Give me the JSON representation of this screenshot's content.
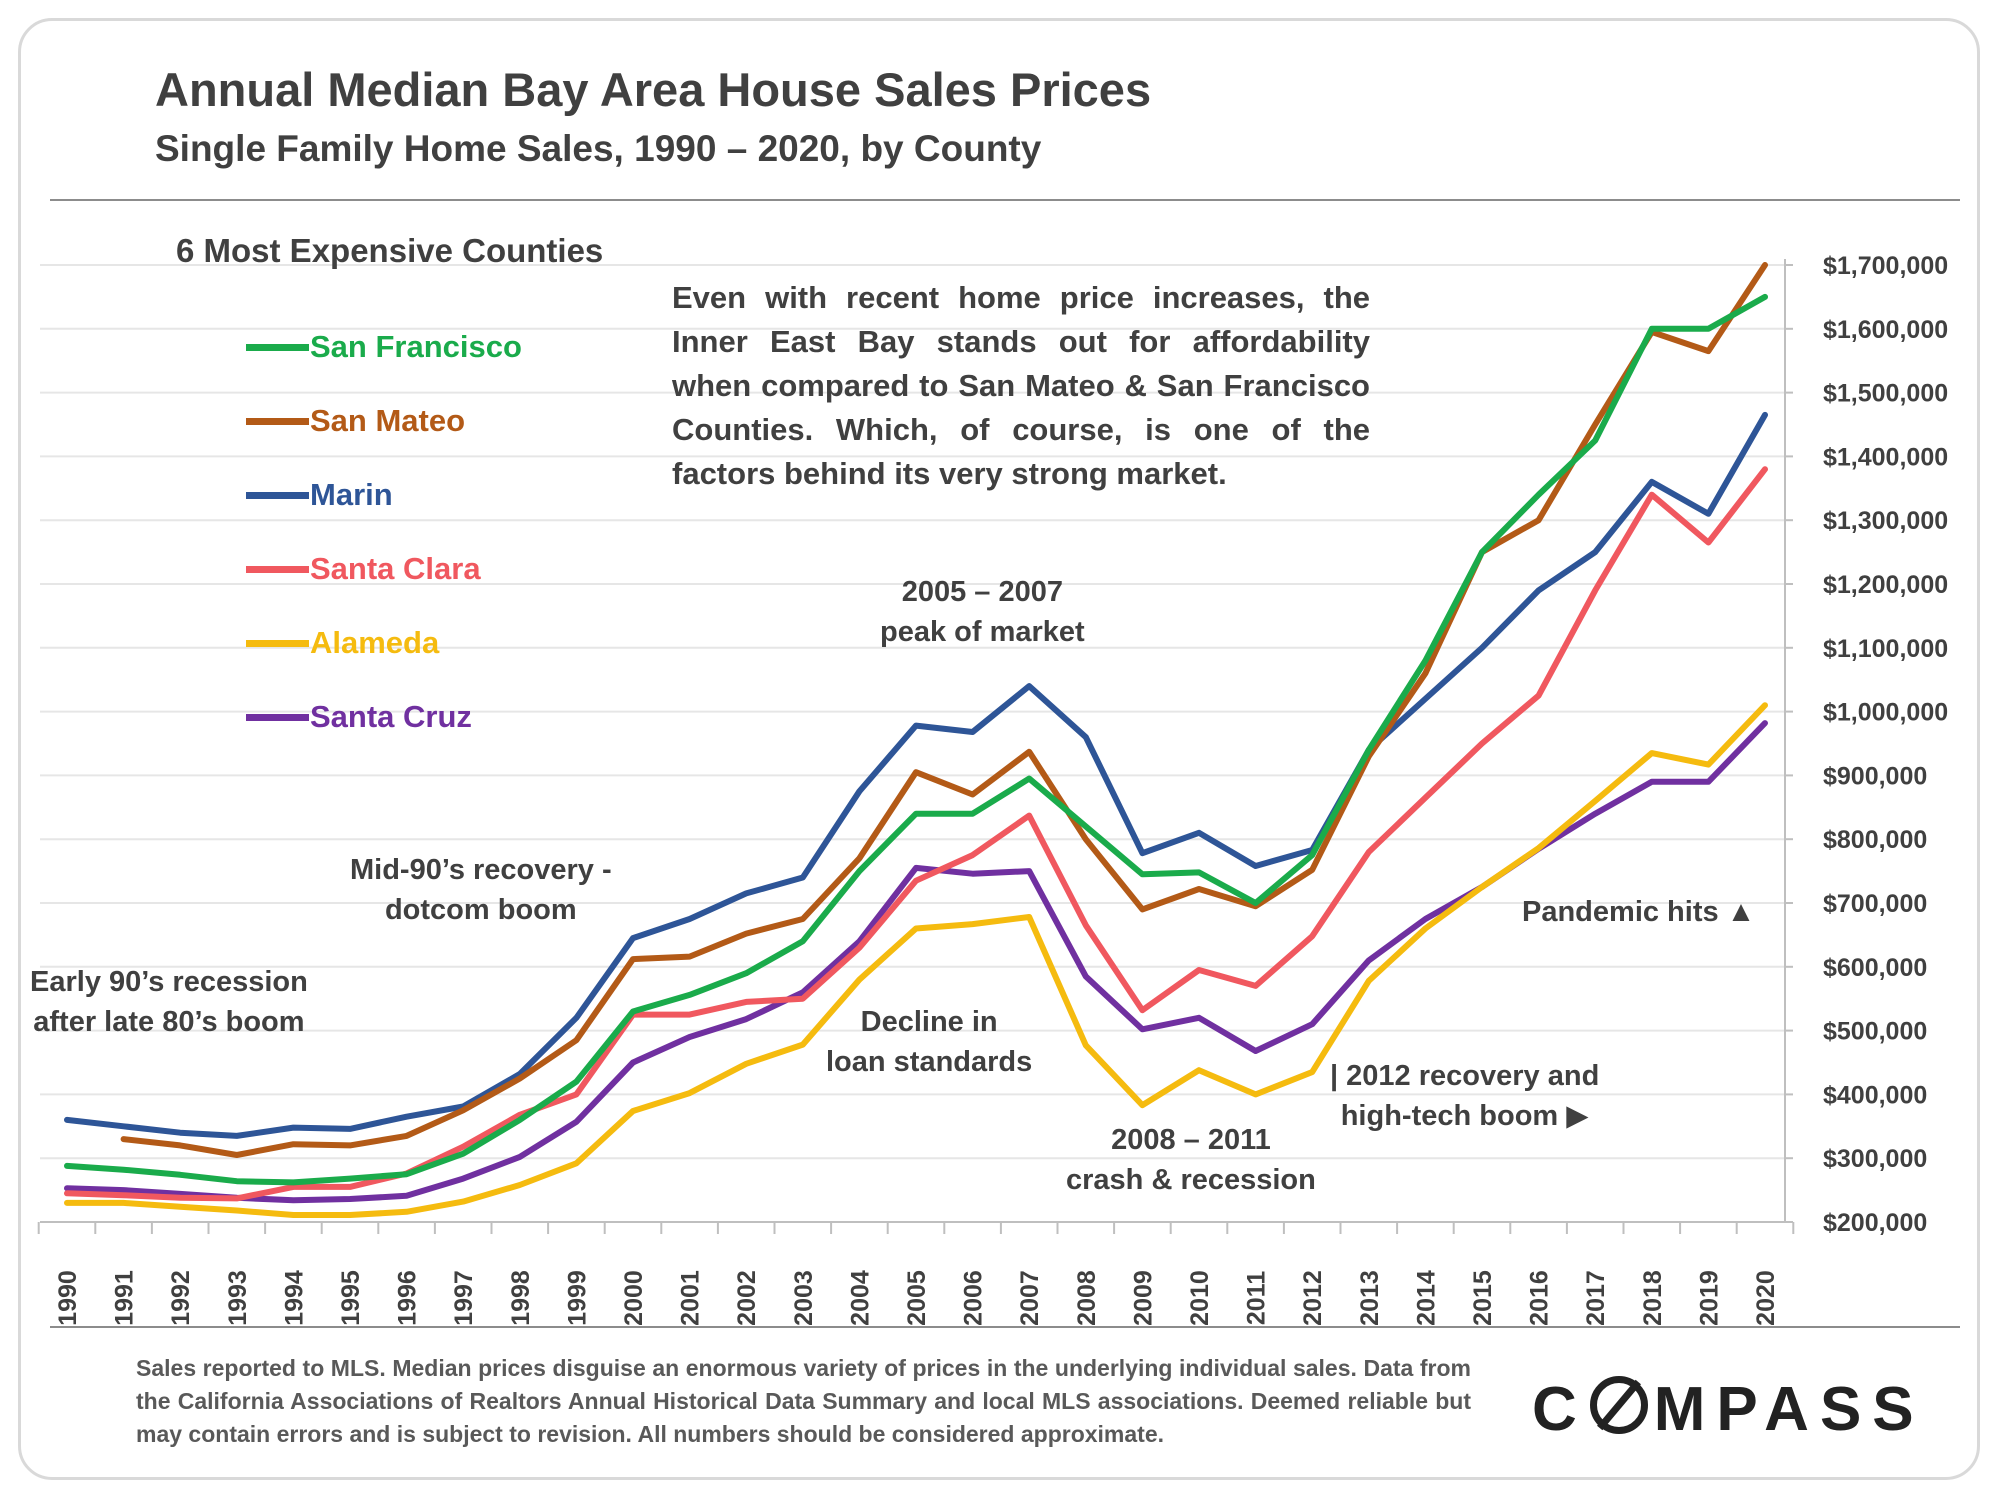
{
  "header": {
    "title": "Annual Median Bay Area House Sales Prices",
    "subtitle": "Single Family Home Sales, 1990 – 2020, by County"
  },
  "legend": {
    "title": "6 Most Expensive Counties"
  },
  "callout": "Even with recent home price increases, the Inner East Bay stands out for affordability when compared to San Mateo & San Francisco Counties. Which, of course, is one of the factors behind its very strong market.",
  "annotations": {
    "early90s": [
      "Early 90’s recession",
      "after late 80’s boom"
    ],
    "mid90s": [
      "Mid-90’s recovery -",
      "dotcom boom"
    ],
    "peak": [
      "2005 – 2007",
      "peak of market"
    ],
    "decline": [
      "Decline in",
      "loan standards"
    ],
    "crash": [
      "2008 – 2011",
      "crash & recession"
    ],
    "recovery2012": [
      "| 2012 recovery and",
      "high-tech boom ▶"
    ],
    "pandemic": "Pandemic hits ▲"
  },
  "footer": "Sales reported to MLS. Median prices disguise an enormous variety of prices in the underlying individual sales. Data from the California Associations of Realtors Annual Historical Data Summary and local MLS associations. Deemed reliable but may contain errors and is subject to revision. All numbers should be considered approximate.",
  "logo": {
    "pre": "C",
    "post": "MPASS",
    "icon": "compass-o-icon"
  },
  "chart_data": {
    "type": "line",
    "title": "Annual Median Bay Area House Sales Prices",
    "subtitle": "Single Family Home Sales, 1990 – 2020, by County",
    "xlabel": "",
    "ylabel": "",
    "x": [
      1990,
      1991,
      1992,
      1993,
      1994,
      1995,
      1996,
      1997,
      1998,
      1999,
      2000,
      2001,
      2002,
      2003,
      2004,
      2005,
      2006,
      2007,
      2008,
      2009,
      2010,
      2011,
      2012,
      2013,
      2014,
      2015,
      2016,
      2017,
      2018,
      2019,
      2020
    ],
    "ylim": [
      200000,
      1700000
    ],
    "yticks": [
      200000,
      300000,
      400000,
      500000,
      600000,
      700000,
      800000,
      900000,
      1000000,
      1100000,
      1200000,
      1300000,
      1400000,
      1500000,
      1600000,
      1700000
    ],
    "ytick_labels": [
      "$200,000",
      "$300,000",
      "$400,000",
      "$500,000",
      "$600,000",
      "$700,000",
      "$800,000",
      "$900,000",
      "$1,000,000",
      "$1,100,000",
      "$1,200,000",
      "$1,300,000",
      "$1,400,000",
      "$1,500,000",
      "$1,600,000",
      "$1,700,000"
    ],
    "y_axis_position": "right",
    "grid": true,
    "legend_position": "top-left",
    "series": [
      {
        "name": "San Francisco",
        "color": "#1aab4b",
        "values": [
          288000,
          282000,
          274000,
          264000,
          262000,
          268000,
          275000,
          307000,
          360000,
          420000,
          530000,
          556000,
          590000,
          640000,
          750000,
          840000,
          840000,
          895000,
          820000,
          745000,
          748000,
          700000,
          775000,
          940000,
          1080000,
          1250000,
          1340000,
          1425000,
          1600000,
          1600000,
          1650000
        ]
      },
      {
        "name": "San Mateo",
        "color": "#b35a17",
        "values": [
          null,
          330000,
          320000,
          305000,
          322000,
          320000,
          335000,
          375000,
          425000,
          485000,
          612000,
          616000,
          652000,
          675000,
          770000,
          905000,
          870000,
          937000,
          800000,
          690000,
          722000,
          695000,
          752000,
          930000,
          1060000,
          1250000,
          1300000,
          1450000,
          1595000,
          1565000,
          1700000
        ]
      },
      {
        "name": "Marin",
        "color": "#2e5597",
        "values": [
          360000,
          350000,
          340000,
          335000,
          348000,
          346000,
          365000,
          381000,
          432000,
          520000,
          645000,
          675000,
          715000,
          740000,
          875000,
          978000,
          968000,
          1040000,
          960000,
          778000,
          810000,
          758000,
          783000,
          940000,
          1020000,
          1100000,
          1190000,
          1250000,
          1360000,
          1310000,
          1465000
        ]
      },
      {
        "name": "Santa Clara",
        "color": "#f0585f",
        "values": [
          245000,
          242000,
          238000,
          237000,
          255000,
          255000,
          276000,
          318000,
          368000,
          400000,
          525000,
          525000,
          545000,
          550000,
          630000,
          735000,
          775000,
          837000,
          665000,
          532000,
          595000,
          570000,
          648000,
          780000,
          865000,
          950000,
          1025000,
          1190000,
          1340000,
          1265000,
          1380000
        ]
      },
      {
        "name": "Alameda",
        "color": "#f5bb0f",
        "values": [
          230000,
          230000,
          224000,
          218000,
          211000,
          211000,
          216000,
          232000,
          258000,
          292000,
          374000,
          402000,
          448000,
          478000,
          580000,
          660000,
          667000,
          678000,
          477000,
          383000,
          438000,
          400000,
          435000,
          578000,
          660000,
          725000,
          786000,
          860000,
          935000,
          917000,
          1010000
        ]
      },
      {
        "name": "Santa Cruz",
        "color": "#7030a0",
        "values": [
          253000,
          250000,
          244000,
          238000,
          234000,
          236000,
          241000,
          268000,
          302000,
          357000,
          450000,
          490000,
          518000,
          560000,
          640000,
          755000,
          746000,
          750000,
          585000,
          502000,
          520000,
          468000,
          510000,
          610000,
          675000,
          725000,
          785000,
          840000,
          890000,
          890000,
          982000
        ]
      }
    ]
  }
}
